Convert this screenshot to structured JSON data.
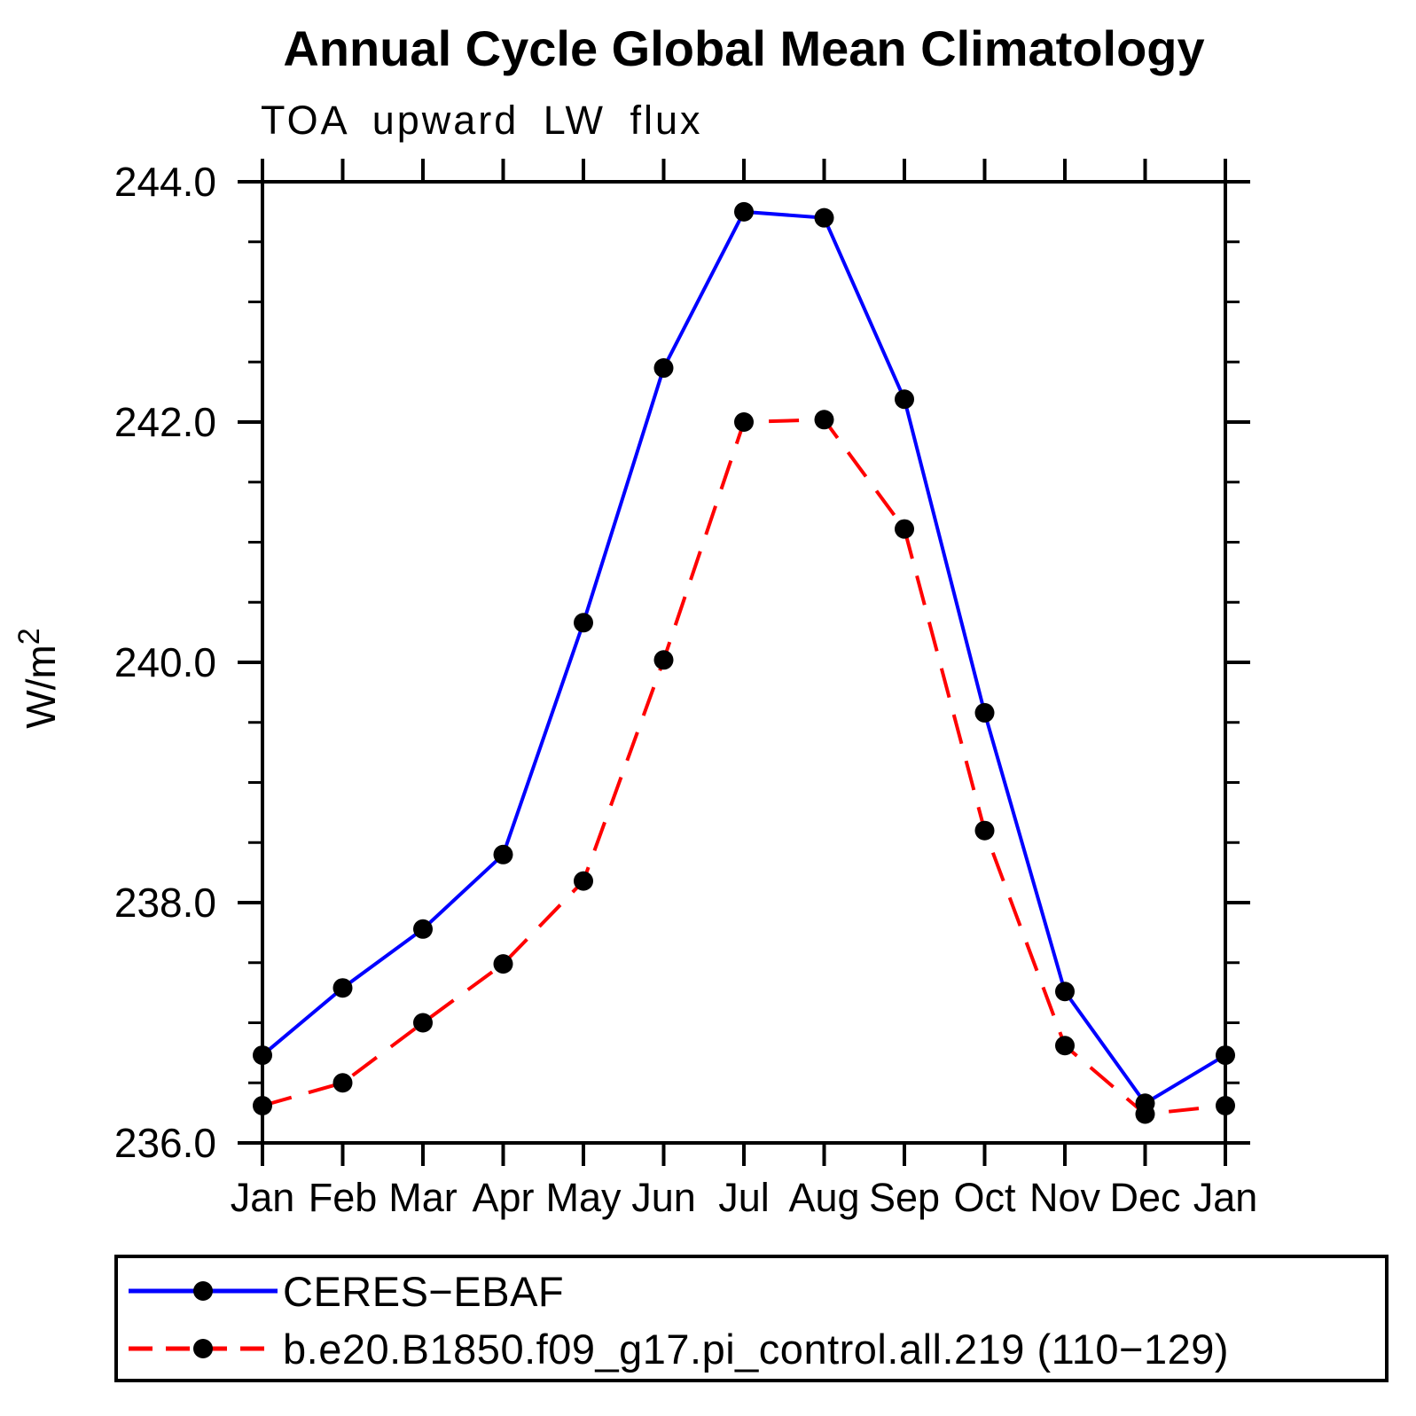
{
  "chart_data": {
    "type": "line",
    "title": "Annual Cycle Global Mean Climatology",
    "subtitle": "TOA upward LW flux",
    "ylabel": "W/m²",
    "ylabel_base": "W/m",
    "ylabel_sup": "2",
    "x_tick_labels": [
      "Jan",
      "Feb",
      "Mar",
      "Apr",
      "May",
      "Jun",
      "Jul",
      "Aug",
      "Sep",
      "Oct",
      "Nov",
      "Dec",
      "Jan"
    ],
    "ylim": [
      236.0,
      244.0
    ],
    "y_major_ticks": [
      236.0,
      238.0,
      240.0,
      242.0,
      244.0
    ],
    "y_tick_labels": [
      "236.0",
      "238.0",
      "240.0",
      "242.0",
      "244.0"
    ],
    "y_minor_step": 0.5,
    "grid": false,
    "legend_position": "bottom-left",
    "axis_color": "#000000",
    "marker_radius": 11,
    "series": [
      {
        "name": "CERES−EBAF",
        "color": "#0000ff",
        "style": "solid",
        "marker": "filled-circle",
        "marker_color": "#000000",
        "values": [
          236.73,
          237.29,
          237.78,
          238.4,
          240.33,
          242.45,
          243.75,
          243.7,
          242.19,
          239.58,
          237.26,
          236.33,
          236.73
        ]
      },
      {
        "name": "b.e20.B1850.f09_g17.pi_control.all.219 (110−129)",
        "color": "#ff0000",
        "style": "dashed",
        "marker": "filled-circle",
        "marker_color": "#000000",
        "values": [
          236.31,
          236.5,
          237.0,
          237.49,
          238.18,
          240.02,
          242.0,
          242.02,
          241.11,
          238.6,
          236.81,
          236.24,
          236.31
        ]
      }
    ]
  }
}
